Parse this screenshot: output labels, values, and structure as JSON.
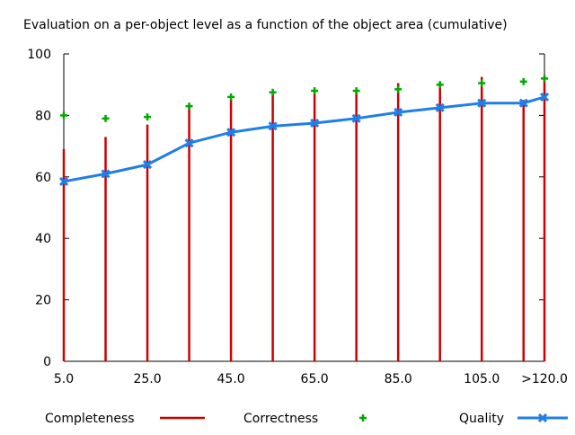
{
  "chart_data": {
    "type": "line",
    "title": "Evaluation on a per-object level as a function of the object area (cumulative)",
    "xlabel": "",
    "ylabel": "",
    "ylim": [
      0,
      100
    ],
    "x": [
      5.0,
      15.0,
      25.0,
      35.0,
      45.0,
      55.0,
      65.0,
      75.0,
      85.0,
      95.0,
      105.0,
      115.0,
      120.0
    ],
    "x_tick_labels": [
      "5.0",
      "25.0",
      "45.0",
      "65.0",
      "85.0",
      "105.0",
      ">120.0"
    ],
    "y_tick_labels": [
      "0",
      "20",
      "40",
      "60",
      "80",
      "100"
    ],
    "grid": false,
    "legend_position": "bottom",
    "series": [
      {
        "name": "Completeness",
        "style": "impulses",
        "color": "#cc0000",
        "values": [
          69,
          73,
          77,
          83,
          85,
          87,
          87.5,
          87.5,
          90.5,
          91,
          92.5,
          85,
          92.5
        ]
      },
      {
        "name": "Correctness",
        "style": "points",
        "color": "#00aa00",
        "values": [
          80,
          79,
          79.5,
          83,
          86,
          87.5,
          88,
          88,
          88.5,
          90,
          90.5,
          91,
          92
        ]
      },
      {
        "name": "Quality",
        "style": "linespoints",
        "color": "#1f7fe8",
        "values": [
          58.5,
          61,
          64,
          71,
          74.5,
          76.5,
          77.5,
          79,
          81,
          82.5,
          84,
          84,
          86
        ]
      }
    ]
  }
}
